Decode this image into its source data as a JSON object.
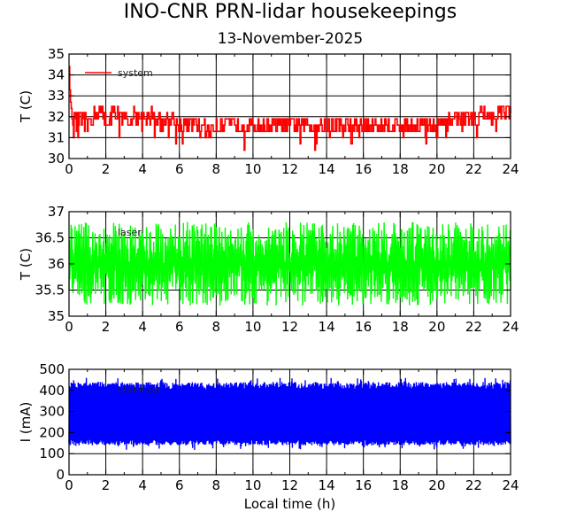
{
  "header": {
    "title": "INO-CNR PRN-lidar housekeepings",
    "subtitle": "13-November-2025"
  },
  "chart_data": [
    {
      "type": "line",
      "ylabel": "T (C)",
      "xlabel": "",
      "xlim": [
        0,
        24
      ],
      "ylim": [
        30,
        35
      ],
      "x_ticks": [
        "0",
        "2",
        "4",
        "6",
        "8",
        "10",
        "12",
        "14",
        "16",
        "18",
        "20",
        "22",
        "24"
      ],
      "y_ticks": [
        "30",
        "31",
        "32",
        "33",
        "34",
        "35"
      ],
      "grid": true,
      "legend": "top-left",
      "series": [
        {
          "name": "system",
          "color": "#ff0000",
          "values": [
            [
              0.0,
              34.4
            ],
            [
              0.05,
              33.0
            ],
            [
              0.1,
              32.5
            ],
            [
              0.2,
              32.0
            ],
            [
              0.4,
              31.6
            ],
            [
              0.6,
              31.9
            ],
            [
              1.0,
              31.6
            ],
            [
              1.5,
              32.2
            ],
            [
              2.0,
              31.8
            ],
            [
              2.5,
              32.1
            ],
            [
              3.0,
              31.7
            ],
            [
              3.5,
              32.0
            ],
            [
              4.0,
              31.7
            ],
            [
              4.5,
              32.0
            ],
            [
              5.0,
              31.6
            ],
            [
              5.5,
              31.8
            ],
            [
              6.0,
              31.5
            ],
            [
              6.5,
              31.6
            ],
            [
              7.0,
              31.5
            ],
            [
              7.5,
              31.3
            ],
            [
              8.0,
              31.4
            ],
            [
              8.5,
              31.5
            ],
            [
              9.0,
              31.5
            ],
            [
              9.5,
              31.4
            ],
            [
              10.0,
              31.6
            ],
            [
              10.5,
              31.5
            ],
            [
              11.0,
              31.6
            ],
            [
              11.5,
              31.5
            ],
            [
              12.0,
              31.5
            ],
            [
              12.5,
              31.4
            ],
            [
              13.0,
              31.5
            ],
            [
              13.5,
              31.4
            ],
            [
              14.0,
              31.5
            ],
            [
              14.5,
              31.4
            ],
            [
              15.0,
              31.4
            ],
            [
              15.5,
              31.4
            ],
            [
              16.0,
              31.5
            ],
            [
              16.5,
              31.4
            ],
            [
              17.0,
              31.5
            ],
            [
              17.5,
              31.6
            ],
            [
              18.0,
              31.6
            ],
            [
              18.5,
              31.5
            ],
            [
              19.0,
              31.5
            ],
            [
              19.5,
              31.6
            ],
            [
              20.0,
              31.5
            ],
            [
              20.5,
              31.6
            ],
            [
              21.0,
              31.8
            ],
            [
              21.5,
              31.9
            ],
            [
              22.0,
              31.9
            ],
            [
              22.5,
              32.0
            ],
            [
              23.0,
              31.9
            ],
            [
              23.5,
              32.0
            ],
            [
              24.0,
              32.0
            ]
          ]
        }
      ]
    },
    {
      "type": "line",
      "ylabel": "T (C)",
      "xlabel": "",
      "xlim": [
        0,
        24
      ],
      "ylim": [
        35,
        37
      ],
      "x_ticks": [
        "0",
        "2",
        "4",
        "6",
        "8",
        "10",
        "12",
        "14",
        "16",
        "18",
        "20",
        "22",
        "24"
      ],
      "y_ticks": [
        "35",
        "35.5",
        "36",
        "36.5",
        "37"
      ],
      "grid": true,
      "legend": "top-left",
      "series": [
        {
          "name": "laser",
          "color": "#00ff00",
          "values": [
            [
              0.0,
              36.0
            ],
            [
              2.0,
              36.0
            ],
            [
              4.0,
              36.0
            ],
            [
              6.0,
              36.0
            ],
            [
              8.0,
              36.0
            ],
            [
              10.0,
              36.0
            ],
            [
              12.0,
              36.0
            ],
            [
              14.0,
              36.0
            ],
            [
              16.0,
              36.0
            ],
            [
              18.0,
              36.0
            ],
            [
              20.0,
              36.0
            ],
            [
              22.0,
              36.0
            ],
            [
              24.0,
              36.0
            ]
          ]
        }
      ]
    },
    {
      "type": "line",
      "ylabel": "I (mA)",
      "xlabel": "Local time (h)",
      "xlim": [
        0,
        24
      ],
      "ylim": [
        0,
        500
      ],
      "x_ticks": [
        "0",
        "2",
        "4",
        "6",
        "8",
        "10",
        "12",
        "14",
        "16",
        "18",
        "20",
        "22",
        "24"
      ],
      "y_ticks": [
        "0",
        "100",
        "200",
        "300",
        "400",
        "500"
      ],
      "grid": true,
      "legend": "top-left",
      "series": [
        {
          "name": "stabilizer",
          "color": "#0000ff",
          "values": [
            [
              0.0,
              290
            ],
            [
              2.0,
              290
            ],
            [
              4.0,
              290
            ],
            [
              6.0,
              290
            ],
            [
              8.0,
              290
            ],
            [
              10.0,
              290
            ],
            [
              12.0,
              290
            ],
            [
              14.0,
              290
            ],
            [
              16.0,
              290
            ],
            [
              18.0,
              290
            ],
            [
              20.0,
              290
            ],
            [
              22.0,
              290
            ],
            [
              24.0,
              290
            ]
          ]
        }
      ]
    }
  ]
}
